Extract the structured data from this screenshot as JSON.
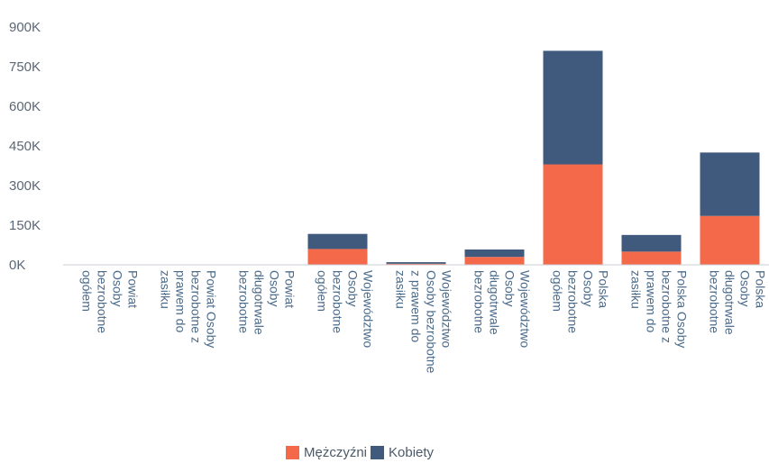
{
  "chart_data": {
    "type": "bar",
    "stacked": true,
    "title": "",
    "xlabel": "",
    "ylabel": "",
    "ylim": [
      0,
      900000
    ],
    "y_ticks": [
      0,
      150000,
      300000,
      450000,
      600000,
      750000,
      900000
    ],
    "y_tick_labels": [
      "0K",
      "150K",
      "300K",
      "450K",
      "600K",
      "750K",
      "900K"
    ],
    "grid": false,
    "legend_position": "bottom",
    "categories": [
      [
        "Powiat",
        "Osoby",
        "bezrobotne",
        "ogółem"
      ],
      [
        "Powiat Osoby",
        "bezrobotne z",
        "prawem do",
        "zasiłku"
      ],
      [
        "Powiat",
        "Osoby",
        "długotrwale",
        "bezrobotne"
      ],
      [
        "Województwo",
        "Osoby",
        "bezrobotne",
        "ogółem"
      ],
      [
        "Województwo",
        "Osoby bezrobotne",
        "z prawem do",
        "zasiłku"
      ],
      [
        "Województwo",
        "Osoby",
        "długotrwale",
        "bezrobotne"
      ],
      [
        "Polska",
        "Osoby",
        "bezrobotne",
        "ogółem"
      ],
      [
        "Polska Osoby",
        "bezrobotne z",
        "prawem do",
        "zasiłku"
      ],
      [
        "Polska",
        "Osoby",
        "długotrwale",
        "bezrobotne"
      ]
    ],
    "series": [
      {
        "name": "Mężczyźni",
        "color": "#f4694a",
        "values": [
          400,
          100,
          200,
          60000,
          4000,
          30000,
          380000,
          50000,
          185000
        ]
      },
      {
        "name": "Kobiety",
        "color": "#3f5a7d",
        "values": [
          500,
          150,
          250,
          57000,
          6000,
          28000,
          430000,
          63000,
          240000
        ]
      }
    ]
  }
}
